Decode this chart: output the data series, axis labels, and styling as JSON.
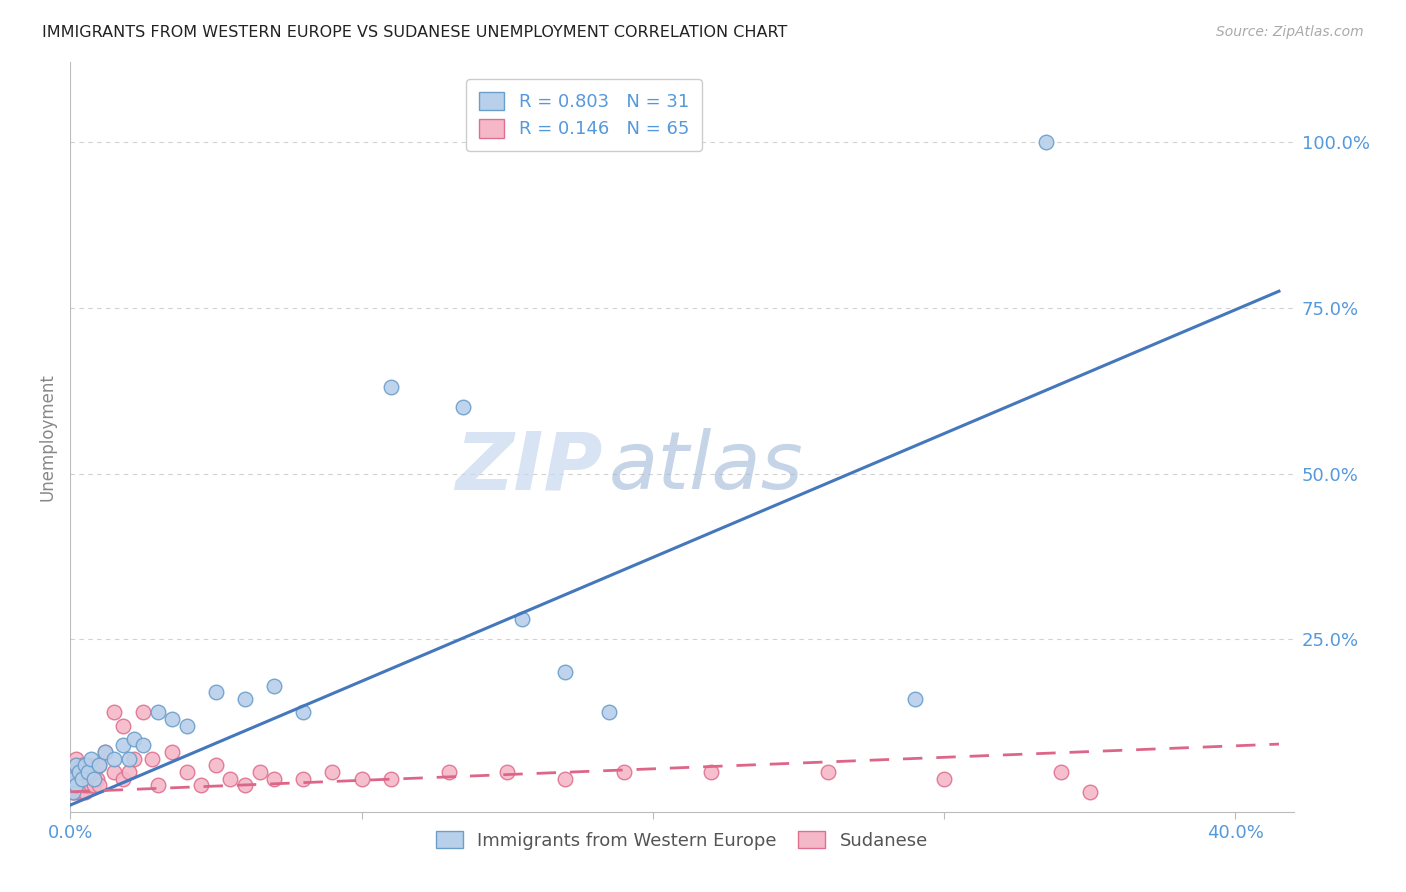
{
  "title": "IMMIGRANTS FROM WESTERN EUROPE VS SUDANESE UNEMPLOYMENT CORRELATION CHART",
  "source": "Source: ZipAtlas.com",
  "ylabel": "Unemployment",
  "xlim": [
    0.0,
    0.42
  ],
  "ylim": [
    -0.01,
    1.12
  ],
  "yticks": [
    0.0,
    0.25,
    0.5,
    0.75,
    1.0
  ],
  "ytick_labels": [
    "",
    "25.0%",
    "50.0%",
    "75.0%",
    "100.0%"
  ],
  "xticks": [
    0.0,
    0.1,
    0.2,
    0.3,
    0.4
  ],
  "xtick_labels": [
    "0.0%",
    "",
    "",
    "",
    "40.0%"
  ],
  "blue_series_label": "Immigrants from Western Europe",
  "pink_series_label": "Sudanese",
  "blue_R": 0.803,
  "blue_N": 31,
  "pink_R": 0.146,
  "pink_N": 65,
  "blue_color": "#b8d0ea",
  "blue_edge_color": "#6a9fcc",
  "blue_line_color": "#4477bb",
  "pink_color": "#f5b8c8",
  "pink_edge_color": "#e07090",
  "pink_line_color": "#dd6688",
  "background_color": "#ffffff",
  "grid_color": "#cccccc",
  "title_color": "#222222",
  "axis_label_color": "#5599dd",
  "watermark_zip": "ZIP",
  "watermark_atlas": "atlas",
  "blue_points_x": [
    0.001,
    0.001,
    0.002,
    0.002,
    0.003,
    0.004,
    0.005,
    0.006,
    0.007,
    0.008,
    0.01,
    0.012,
    0.015,
    0.018,
    0.02,
    0.022,
    0.025,
    0.03,
    0.035,
    0.04,
    0.05,
    0.06,
    0.07,
    0.08,
    0.11,
    0.135,
    0.155,
    0.17,
    0.185,
    0.29,
    0.335
  ],
  "blue_points_y": [
    0.02,
    0.04,
    0.03,
    0.06,
    0.05,
    0.04,
    0.06,
    0.05,
    0.07,
    0.04,
    0.06,
    0.08,
    0.07,
    0.09,
    0.07,
    0.1,
    0.09,
    0.14,
    0.13,
    0.12,
    0.17,
    0.16,
    0.18,
    0.14,
    0.63,
    0.6,
    0.28,
    0.2,
    0.14,
    0.16,
    1.0
  ],
  "pink_points_x": [
    0.001,
    0.001,
    0.001,
    0.001,
    0.001,
    0.001,
    0.001,
    0.001,
    0.001,
    0.002,
    0.002,
    0.002,
    0.002,
    0.002,
    0.002,
    0.003,
    0.003,
    0.003,
    0.003,
    0.004,
    0.004,
    0.004,
    0.005,
    0.005,
    0.005,
    0.006,
    0.006,
    0.007,
    0.007,
    0.008,
    0.008,
    0.009,
    0.01,
    0.01,
    0.012,
    0.015,
    0.015,
    0.018,
    0.018,
    0.02,
    0.022,
    0.025,
    0.028,
    0.03,
    0.035,
    0.04,
    0.045,
    0.05,
    0.055,
    0.06,
    0.065,
    0.07,
    0.08,
    0.09,
    0.1,
    0.11,
    0.13,
    0.15,
    0.17,
    0.19,
    0.22,
    0.26,
    0.3,
    0.34,
    0.35
  ],
  "pink_points_y": [
    0.02,
    0.02,
    0.03,
    0.03,
    0.04,
    0.04,
    0.05,
    0.05,
    0.06,
    0.02,
    0.03,
    0.04,
    0.05,
    0.06,
    0.07,
    0.02,
    0.03,
    0.04,
    0.05,
    0.02,
    0.04,
    0.06,
    0.02,
    0.03,
    0.05,
    0.03,
    0.06,
    0.03,
    0.05,
    0.03,
    0.05,
    0.04,
    0.03,
    0.06,
    0.08,
    0.05,
    0.14,
    0.04,
    0.12,
    0.05,
    0.07,
    0.14,
    0.07,
    0.03,
    0.08,
    0.05,
    0.03,
    0.06,
    0.04,
    0.03,
    0.05,
    0.04,
    0.04,
    0.05,
    0.04,
    0.04,
    0.05,
    0.05,
    0.04,
    0.05,
    0.05,
    0.05,
    0.04,
    0.05,
    0.02
  ],
  "blue_line_x": [
    0.0,
    0.415
  ],
  "blue_line_y": [
    0.0,
    0.775
  ],
  "pink_line_x": [
    0.0,
    0.415
  ],
  "pink_line_y": [
    0.02,
    0.092
  ]
}
